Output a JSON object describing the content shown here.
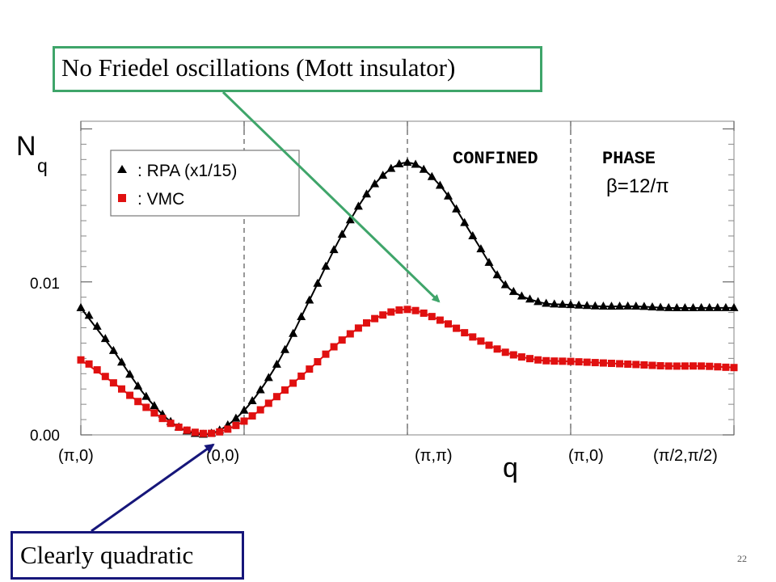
{
  "callouts": {
    "top": "No Friedel oscillations (Mott insulator)",
    "bottom": "Clearly quadratic"
  },
  "slide_number": "22",
  "colors": {
    "rpa": "#000000",
    "vmc": "#e01010",
    "arrow_top": "#3fa56a",
    "arrow_bottom": "#16167a"
  },
  "chart_data": {
    "type": "line",
    "ylabel": "N",
    "ylabel_subscript": "q",
    "xlabel": "q",
    "x_tick_labels": [
      "(π,0)",
      "(0,0)",
      "(π,π)",
      "(π,0)",
      "(π/2,π/2)"
    ],
    "y_tick_labels": [
      "0.00",
      "0.01"
    ],
    "ylim": [
      0,
      0.0205
    ],
    "x_segments": 4,
    "region_label": [
      "CONFINED",
      "PHASE"
    ],
    "region_param": "β=12/π",
    "legend_position": "top-left",
    "series": [
      {
        "name": ": RPA (x1/15)",
        "marker": "triangle",
        "x": [
          0,
          0.2,
          0.4,
          0.6,
          0.8,
          1.0,
          1.2,
          1.4,
          1.6,
          1.8,
          2.0,
          2.2,
          2.4,
          2.6,
          2.8,
          3.0,
          3.2,
          3.4,
          3.6,
          3.8,
          4.0
        ],
        "values": [
          0.0083,
          0.0055,
          0.0025,
          0.0005,
          0.0001,
          0.0016,
          0.0046,
          0.0088,
          0.0131,
          0.0164,
          0.0178,
          0.0163,
          0.013,
          0.0098,
          0.0087,
          0.0085,
          0.0084,
          0.0084,
          0.0083,
          0.0083,
          0.0083
        ]
      },
      {
        "name": ": VMC",
        "marker": "square",
        "x": [
          0,
          0.2,
          0.4,
          0.6,
          0.8,
          1.0,
          1.2,
          1.4,
          1.6,
          1.8,
          2.0,
          2.2,
          2.4,
          2.6,
          2.8,
          3.0,
          3.2,
          3.4,
          3.6,
          3.8,
          4.0
        ],
        "values": [
          0.0049,
          0.0034,
          0.0018,
          0.0005,
          0.0001,
          0.0009,
          0.0025,
          0.0043,
          0.0062,
          0.0076,
          0.0082,
          0.0075,
          0.0064,
          0.0054,
          0.0049,
          0.0048,
          0.0047,
          0.0046,
          0.0045,
          0.0045,
          0.0044
        ]
      }
    ]
  }
}
